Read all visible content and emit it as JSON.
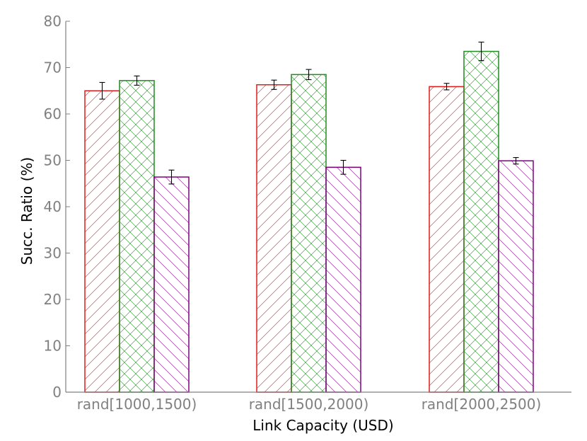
{
  "chart_data": {
    "type": "bar",
    "title": "",
    "xlabel": "Link Capacity (USD)",
    "ylabel": "Succ. Ratio (%)",
    "ylim": [
      0,
      80
    ],
    "yticks": [
      0,
      10,
      20,
      30,
      40,
      50,
      60,
      70,
      80
    ],
    "categories": [
      "rand[1000,1500)",
      "rand[1500,2000)",
      "rand[2000,2500)"
    ],
    "legend": "none",
    "grid": false,
    "series": [
      {
        "color": "#e41a1c",
        "hatch": "diagonal-up",
        "values": [
          65.0,
          66.3,
          65.9
        ],
        "errors": [
          1.8,
          1.0,
          0.7
        ]
      },
      {
        "color": "#228b22",
        "hatch": "crosshatch",
        "values": [
          67.2,
          68.5,
          73.5
        ],
        "errors": [
          1.0,
          1.1,
          2.0
        ]
      },
      {
        "color": "#800080",
        "hatch": "diagonal-down",
        "values": [
          46.4,
          48.5,
          49.9
        ],
        "errors": [
          1.5,
          1.5,
          0.7
        ]
      }
    ]
  }
}
